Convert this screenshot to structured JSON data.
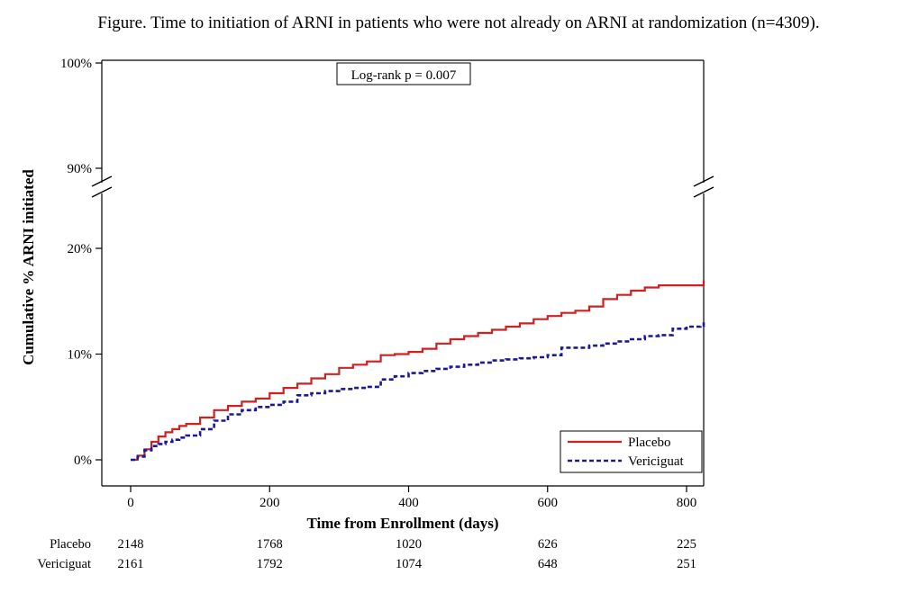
{
  "chart_data": {
    "type": "line",
    "title": "Figure. Time to initiation of ARNI in patients who were not already on ARNI at randomization (n=4309).",
    "xlabel": "Time from Enrollment (days)",
    "ylabel": "Cumulative % ARNI initiated",
    "xlim": [
      -20,
      840
    ],
    "x_ticks": [
      0,
      200,
      400,
      600,
      800
    ],
    "x_tick_labels": [
      "0",
      "200",
      "400",
      "600",
      "800"
    ],
    "y_axis_break": true,
    "y_lower_range": [
      0,
      20
    ],
    "y_upper_range": [
      90,
      100
    ],
    "y_ticks": [
      0,
      10,
      20,
      90,
      100
    ],
    "y_tick_labels": [
      "0%",
      "10%",
      "20%",
      "90%",
      "100%"
    ],
    "annotation": "Log-rank p = 0.007",
    "legend_position": "bottom-right",
    "series": [
      {
        "name": "Placebo",
        "color": "#cc2222",
        "style": "solid",
        "x": [
          0,
          10,
          20,
          30,
          40,
          50,
          60,
          70,
          80,
          100,
          120,
          140,
          160,
          180,
          200,
          220,
          240,
          260,
          280,
          300,
          320,
          340,
          360,
          380,
          400,
          420,
          440,
          460,
          480,
          500,
          520,
          540,
          560,
          580,
          600,
          620,
          640,
          660,
          680,
          700,
          720,
          740,
          760,
          780,
          800,
          820,
          835
        ],
        "values": [
          0,
          0.4,
          1.0,
          1.7,
          2.2,
          2.6,
          2.9,
          3.2,
          3.4,
          4.0,
          4.7,
          5.1,
          5.5,
          5.8,
          6.3,
          6.8,
          7.2,
          7.7,
          8.1,
          8.7,
          9.0,
          9.3,
          9.9,
          10.0,
          10.2,
          10.5,
          11.0,
          11.4,
          11.7,
          12.0,
          12.3,
          12.6,
          12.9,
          13.3,
          13.6,
          13.9,
          14.1,
          14.5,
          15.2,
          15.6,
          16.0,
          16.3,
          16.5,
          16.5,
          16.5,
          16.5,
          17.0
        ]
      },
      {
        "name": "Vericiguat",
        "color": "#1a1a99",
        "style": "dashed",
        "x": [
          0,
          10,
          20,
          30,
          40,
          50,
          60,
          70,
          80,
          100,
          120,
          140,
          160,
          180,
          200,
          220,
          240,
          260,
          280,
          300,
          320,
          340,
          360,
          380,
          400,
          420,
          440,
          460,
          480,
          500,
          520,
          540,
          560,
          580,
          600,
          620,
          640,
          660,
          680,
          700,
          720,
          740,
          760,
          780,
          800,
          820,
          835
        ],
        "values": [
          0,
          0.3,
          0.9,
          1.3,
          1.5,
          1.7,
          1.9,
          2.1,
          2.3,
          2.9,
          3.7,
          4.3,
          4.7,
          5.0,
          5.2,
          5.5,
          6.1,
          6.3,
          6.5,
          6.7,
          6.8,
          6.9,
          7.6,
          7.9,
          8.2,
          8.4,
          8.6,
          8.8,
          9.0,
          9.2,
          9.4,
          9.5,
          9.6,
          9.7,
          9.9,
          10.6,
          10.6,
          10.8,
          11.0,
          11.2,
          11.4,
          11.7,
          11.8,
          12.4,
          12.6,
          12.7,
          13.0
        ]
      }
    ],
    "risk_table": {
      "rows": [
        {
          "label": "Placebo",
          "values": [
            "2148",
            "1768",
            "1020",
            "626",
            "225"
          ]
        },
        {
          "label": "Vericiguat",
          "values": [
            "2161",
            "1792",
            "1074",
            "648",
            "251"
          ]
        }
      ],
      "x": [
        0,
        200,
        400,
        600,
        800
      ]
    }
  }
}
